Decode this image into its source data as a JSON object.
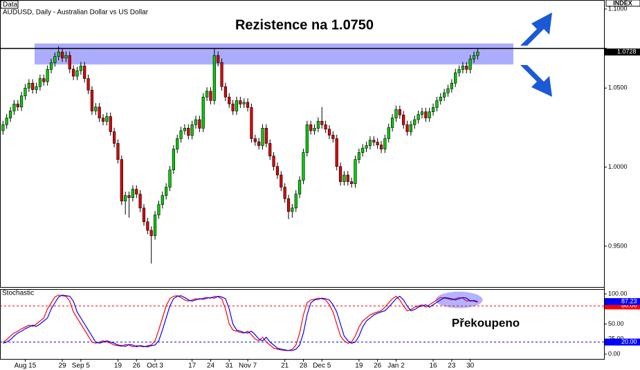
{
  "chart_data": [
    {
      "type": "candlestick",
      "corner_label": "Data",
      "title": "AUDUSD, Daily - Australian Dollar vs US Dollar",
      "axis_label": "INDEX",
      "up_color": "#00cc00",
      "down_color": "#dd0000",
      "ylim": [
        0.9237,
        1.1057
      ],
      "yticks": [
        {
          "value": 0.95,
          "label": "0.9500"
        },
        {
          "value": 1.0,
          "label": "1.0000"
        },
        {
          "value": 1.05,
          "label": "1.0500"
        },
        {
          "value": 1.1,
          "label": "1.1000"
        }
      ],
      "resistance": {
        "label": "Rezistence na 1.0750",
        "value": 1.075,
        "band": [
          1.0649,
          1.0782
        ],
        "color": "#8080ff"
      },
      "categories": [
        null,
        null,
        null,
        null,
        null,
        null,
        "Aug 15",
        null,
        null,
        null,
        null,
        null,
        null,
        null,
        null,
        null,
        "29",
        null,
        null,
        null,
        null,
        "Sep 5",
        null,
        null,
        null,
        null,
        null,
        null,
        null,
        null,
        null,
        "19",
        null,
        null,
        null,
        null,
        "26",
        null,
        null,
        null,
        null,
        "Oct 3",
        null,
        null,
        null,
        null,
        null,
        null,
        null,
        null,
        null,
        "17",
        null,
        null,
        null,
        null,
        "24",
        null,
        null,
        null,
        null,
        "31",
        null,
        null,
        null,
        null,
        "Nov 7",
        null,
        null,
        null,
        null,
        null,
        null,
        null,
        null,
        null,
        "21",
        null,
        null,
        null,
        null,
        "28",
        null,
        null,
        null,
        null,
        "Dec 5",
        null,
        null,
        null,
        null,
        null,
        null,
        null,
        null,
        null,
        "19",
        null,
        null,
        null,
        null,
        "26",
        null,
        null,
        null,
        null,
        "Jan 2",
        null,
        null,
        null,
        null,
        null,
        null,
        null,
        null,
        null,
        "16",
        null,
        null,
        null,
        null,
        "23",
        null,
        null,
        null,
        null,
        "30",
        null,
        null
      ],
      "open": [
        1.023,
        1.0268,
        1.031,
        1.0355,
        1.0399,
        1.038,
        1.045,
        1.05,
        1.0531,
        1.049,
        1.0509,
        1.056,
        1.054,
        1.0618,
        1.066,
        1.07,
        1.0728,
        1.069,
        1.0706,
        1.062,
        1.0575,
        1.061,
        1.064,
        1.056,
        1.0487,
        1.0355,
        1.038,
        1.031,
        1.0289,
        1.032,
        1.0224,
        1.015,
        1.0048,
        0.9785,
        0.982,
        0.9807,
        0.986,
        0.9829,
        0.9741,
        0.9654,
        0.96,
        0.9566,
        0.9697,
        0.9763,
        0.982,
        0.9873,
        0.9982,
        1.0114,
        1.018,
        1.023,
        1.0246,
        1.02,
        1.0268,
        1.03,
        1.0246,
        1.0443,
        1.048,
        1.0421,
        1.0706,
        1.0662,
        1.0509,
        1.0443,
        1.04,
        1.0355,
        1.042,
        1.0399,
        1.041,
        1.0377,
        1.018,
        1.016,
        1.0136,
        1.0246,
        1.015,
        1.007,
        1.0004,
        0.995,
        0.9873,
        0.98,
        0.9719,
        0.9741,
        0.9829,
        0.9917,
        1.0092,
        1.0268,
        1.023,
        1.0246,
        1.029,
        1.0268,
        1.024,
        1.0202,
        1.018,
        1.0004,
        0.9908,
        0.995,
        0.9908,
        0.9895,
        1.0048,
        1.0092,
        1.012,
        1.0136,
        1.017,
        1.0158,
        1.014,
        1.0114,
        1.018,
        1.025,
        1.0311,
        1.0364,
        1.033,
        1.0268,
        1.0224,
        1.0268,
        1.03,
        1.0333,
        1.035,
        1.0311,
        1.035,
        1.0377,
        1.042,
        1.0443,
        1.047,
        1.0496,
        1.0531,
        1.0597,
        1.0618,
        1.064,
        1.0618,
        1.0684,
        1.0706
      ],
      "high": [
        1.0293,
        1.0335,
        1.038,
        1.0424,
        1.0424,
        1.0475,
        1.0525,
        1.0556,
        1.0556,
        1.0534,
        1.0585,
        1.0585,
        1.0643,
        1.0685,
        1.0725,
        1.0765,
        1.0753,
        1.0731,
        1.0731,
        1.0645,
        1.0635,
        1.0665,
        1.0665,
        1.0585,
        1.0512,
        1.0405,
        1.0405,
        1.0335,
        1.0345,
        1.0345,
        1.0249,
        1.0175,
        1.0073,
        0.9845,
        0.9845,
        0.9885,
        0.9885,
        0.9854,
        0.9766,
        0.9679,
        0.9625,
        0.9722,
        0.9788,
        0.9845,
        0.9898,
        1.0007,
        1.0139,
        1.0205,
        1.0255,
        1.0271,
        1.0271,
        1.0293,
        1.0325,
        1.0325,
        1.0468,
        1.0505,
        1.0505,
        1.075,
        1.0731,
        1.0687,
        1.0534,
        1.0468,
        1.0425,
        1.0445,
        1.0445,
        1.0435,
        1.0435,
        1.0402,
        1.0205,
        1.0185,
        1.0271,
        1.0271,
        1.0175,
        1.0095,
        1.0029,
        0.9975,
        0.9898,
        0.9825,
        0.9766,
        0.9854,
        0.9942,
        1.0117,
        1.0293,
        1.0293,
        1.0271,
        1.0315,
        1.038,
        1.0293,
        1.0265,
        1.0227,
        1.0205,
        1.0029,
        0.9975,
        0.9975,
        0.9933,
        1.0073,
        1.0117,
        1.0145,
        1.0161,
        1.0195,
        1.0195,
        1.0183,
        1.0165,
        1.0205,
        1.0275,
        1.0336,
        1.0389,
        1.0389,
        1.0355,
        1.0293,
        1.0293,
        1.0325,
        1.0358,
        1.0375,
        1.0375,
        1.0375,
        1.0402,
        1.0445,
        1.0468,
        1.0495,
        1.0521,
        1.0556,
        1.0622,
        1.0643,
        1.0665,
        1.0665,
        1.0709,
        1.0731,
        1.0753
      ],
      "low": [
        1.0205,
        1.0243,
        1.0285,
        1.033,
        1.0355,
        1.0355,
        1.0425,
        1.0475,
        1.0465,
        1.0465,
        1.0484,
        1.0515,
        1.0515,
        1.0593,
        1.0635,
        1.0675,
        1.0665,
        1.0665,
        1.0595,
        1.055,
        1.055,
        1.0585,
        1.0535,
        1.0462,
        1.033,
        1.033,
        1.0285,
        1.0264,
        1.0264,
        1.0199,
        1.0125,
        1.0023,
        0.976,
        0.97,
        0.968,
        0.9782,
        0.9804,
        0.9716,
        0.9629,
        0.9575,
        0.939,
        0.9541,
        0.9672,
        0.9738,
        0.9795,
        0.9848,
        0.9957,
        1.0089,
        1.0155,
        1.0205,
        1.0175,
        1.0175,
        1.0243,
        1.0221,
        1.0221,
        1.0418,
        1.0396,
        1.0396,
        1.0637,
        1.0484,
        1.0418,
        1.0375,
        1.033,
        1.033,
        1.0374,
        1.0374,
        1.0352,
        1.0155,
        1.0135,
        1.0111,
        1.0111,
        1.0125,
        1.0045,
        0.9979,
        0.9925,
        0.9848,
        0.9775,
        0.967,
        0.968,
        0.9716,
        0.9804,
        0.9892,
        1.0067,
        1.0205,
        1.0205,
        1.0221,
        1.0243,
        1.0215,
        1.0177,
        1.0155,
        0.9979,
        0.9883,
        0.9883,
        0.9883,
        0.987,
        0.987,
        1.0023,
        1.0067,
        1.0095,
        1.0111,
        1.0133,
        1.0115,
        1.0089,
        1.0089,
        1.0155,
        1.0225,
        1.0286,
        1.0305,
        1.0243,
        1.0199,
        1.0199,
        1.0243,
        1.0275,
        1.0308,
        1.0286,
        1.0286,
        1.0325,
        1.0352,
        1.0395,
        1.0418,
        1.0445,
        1.0471,
        1.0506,
        1.0572,
        1.0593,
        1.0593,
        1.0593,
        1.0659,
        1.0681
      ],
      "close": [
        1.0268,
        1.031,
        1.0355,
        1.0399,
        1.038,
        1.045,
        1.05,
        1.0531,
        1.049,
        1.0509,
        1.056,
        1.054,
        1.0618,
        1.066,
        1.07,
        1.0728,
        1.069,
        1.0706,
        1.062,
        1.0575,
        1.061,
        1.064,
        1.056,
        1.0487,
        1.0355,
        1.038,
        1.031,
        1.0289,
        1.032,
        1.0224,
        1.015,
        1.0048,
        0.9785,
        0.982,
        0.9807,
        0.986,
        0.9829,
        0.9741,
        0.9654,
        0.96,
        0.9566,
        0.9697,
        0.9763,
        0.982,
        0.9873,
        0.9982,
        1.0114,
        1.018,
        1.023,
        1.0246,
        1.02,
        1.0268,
        1.03,
        1.0246,
        1.0443,
        1.048,
        1.0421,
        1.0706,
        1.0662,
        1.0509,
        1.0443,
        1.04,
        1.0355,
        1.042,
        1.0399,
        1.041,
        1.0377,
        1.018,
        1.016,
        1.0136,
        1.0246,
        1.015,
        1.007,
        1.0004,
        0.995,
        0.9873,
        0.98,
        0.9719,
        0.9741,
        0.9829,
        0.9917,
        1.0092,
        1.0268,
        1.023,
        1.0246,
        1.029,
        1.0268,
        1.024,
        1.0202,
        1.018,
        1.0004,
        0.9908,
        0.995,
        0.9908,
        0.9895,
        1.0048,
        1.0092,
        1.012,
        1.0136,
        1.017,
        1.0158,
        1.014,
        1.0114,
        1.018,
        1.025,
        1.0311,
        1.0364,
        1.033,
        1.0268,
        1.0224,
        1.0268,
        1.03,
        1.0333,
        1.035,
        1.0311,
        1.035,
        1.0377,
        1.042,
        1.0443,
        1.047,
        1.0496,
        1.0531,
        1.0597,
        1.0618,
        1.064,
        1.0618,
        1.0684,
        1.0706,
        1.0728
      ]
    },
    {
      "type": "line",
      "title": "Stochastic",
      "ylim": [
        -9.2,
        108
      ],
      "yticks": [
        {
          "value": 0,
          "label": "0.00"
        },
        {
          "value": 25,
          "label": "25.00"
        },
        {
          "value": 50,
          "label": "50.00"
        },
        {
          "value": 100,
          "label": "100.00"
        }
      ],
      "levels": [
        {
          "value": 80,
          "label": "80.00",
          "color": "#ff0000"
        },
        {
          "value": 20,
          "label": "20.00",
          "color": "#0000ff"
        }
      ],
      "annotation": "Překoupeno",
      "highlight_color": "#8080ff",
      "series": [
        {
          "color": "#ff0000",
          "values": [
            20,
            24,
            30,
            35,
            38,
            42,
            45,
            48,
            46,
            50,
            55,
            60,
            75,
            85,
            95,
            98,
            97,
            96,
            88,
            70,
            60,
            50,
            40,
            30,
            20,
            18,
            20,
            22,
            20,
            18,
            15,
            14,
            13,
            16,
            15,
            12,
            14,
            13,
            12,
            14,
            15,
            22,
            40,
            60,
            80,
            92,
            96,
            97,
            94,
            90,
            88,
            90,
            92,
            91,
            93,
            94,
            93,
            96,
            95,
            92,
            75,
            50,
            40,
            38,
            36,
            35,
            38,
            32,
            25,
            22,
            28,
            20,
            15,
            10,
            8,
            7,
            6,
            6,
            8,
            15,
            35,
            65,
            85,
            90,
            91,
            93,
            92,
            90,
            82,
            70,
            50,
            30,
            22,
            18,
            20,
            30,
            45,
            55,
            60,
            65,
            68,
            70,
            72,
            78,
            85,
            92,
            96,
            90,
            80,
            72,
            74,
            78,
            80,
            82,
            78,
            82,
            86,
            90,
            94,
            93,
            92,
            90,
            92,
            94,
            93,
            88,
            89,
            88,
            86
          ]
        },
        {
          "color": "#0000ff",
          "values": [
            18,
            20,
            24,
            30,
            35,
            38,
            42,
            45,
            48,
            46,
            50,
            55,
            60,
            75,
            85,
            95,
            98,
            97,
            96,
            88,
            70,
            60,
            50,
            40,
            30,
            20,
            18,
            20,
            22,
            20,
            18,
            15,
            14,
            13,
            16,
            15,
            12,
            14,
            13,
            12,
            14,
            15,
            22,
            40,
            60,
            80,
            92,
            96,
            97,
            94,
            90,
            88,
            90,
            92,
            91,
            93,
            94,
            93,
            96,
            95,
            92,
            75,
            50,
            40,
            38,
            36,
            35,
            38,
            32,
            25,
            22,
            28,
            20,
            15,
            10,
            8,
            7,
            6,
            6,
            8,
            15,
            35,
            65,
            85,
            90,
            91,
            93,
            92,
            90,
            82,
            70,
            50,
            30,
            22,
            18,
            20,
            30,
            45,
            55,
            60,
            65,
            68,
            70,
            72,
            78,
            85,
            92,
            96,
            90,
            80,
            72,
            74,
            78,
            80,
            82,
            78,
            82,
            86,
            90,
            94,
            93,
            92,
            90,
            92,
            94,
            93,
            88,
            89,
            87.23
          ]
        }
      ]
    }
  ]
}
